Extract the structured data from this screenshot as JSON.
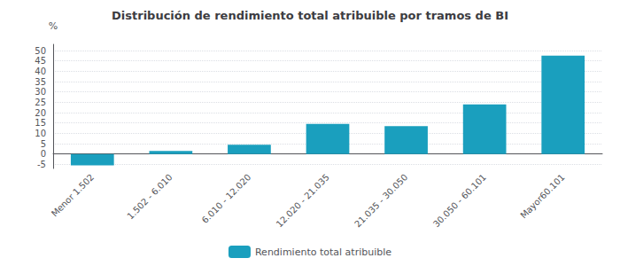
{
  "chart_data": {
    "type": "bar",
    "title": "Distribución de rendimiento total atribuible por tramos de BI",
    "categories": [
      "Menor 1.502",
      "1.502 - 6.010",
      "6.010 - 12.020",
      "12.020 - 21.035",
      "21.035 - 30.050",
      "30.050 - 60.101",
      "Mayor60.101"
    ],
    "series": [
      {
        "name": "Rendimiento total atribuible",
        "color": "#1a9fbe",
        "values": [
          -5.5,
          1.5,
          4.5,
          14.5,
          13.5,
          24.0,
          47.5
        ]
      }
    ],
    "ylabel": "%",
    "ylim": [
      -7,
      53
    ],
    "yticks": [
      -5,
      0,
      5,
      10,
      15,
      20,
      25,
      30,
      35,
      40,
      45,
      50
    ],
    "grid": true,
    "legend": "bottom"
  }
}
